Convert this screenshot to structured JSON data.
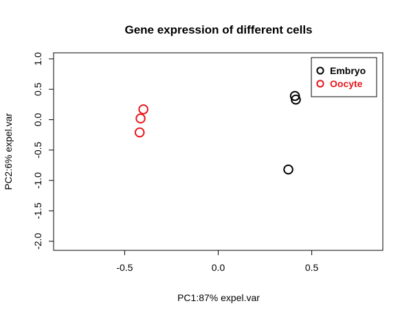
{
  "chart_data": {
    "type": "scatter",
    "title": "Gene expression of different cells",
    "xlabel": "PC1:87% expel.var",
    "ylabel": "PC2:6% expel.var",
    "xlim": [
      -0.88,
      0.88
    ],
    "ylim": [
      -2.15,
      1.1
    ],
    "xticks": [
      -0.5,
      0.0,
      0.5
    ],
    "xtick_labels": [
      "-0.5",
      "0.0",
      "0.5"
    ],
    "yticks": [
      1.0,
      0.5,
      0.0,
      -0.5,
      -1.0,
      -1.5,
      -2.0
    ],
    "ytick_labels": [
      "1.0",
      "0.5",
      "0.0",
      "-0.5",
      "-1.0",
      "-1.5",
      "-2.0"
    ],
    "grid": false,
    "legend_position": "top-right",
    "series": [
      {
        "name": "Embryo",
        "color": "#000000",
        "marker": "open-circle",
        "points": [
          {
            "x": 0.41,
            "y": 0.39
          },
          {
            "x": 0.415,
            "y": 0.33
          },
          {
            "x": 0.375,
            "y": -0.82
          }
        ]
      },
      {
        "name": "Oocyte",
        "color": "#e8161b",
        "marker": "open-circle",
        "points": [
          {
            "x": -0.4,
            "y": 0.17
          },
          {
            "x": -0.415,
            "y": 0.02
          },
          {
            "x": -0.42,
            "y": -0.21
          }
        ]
      }
    ]
  }
}
